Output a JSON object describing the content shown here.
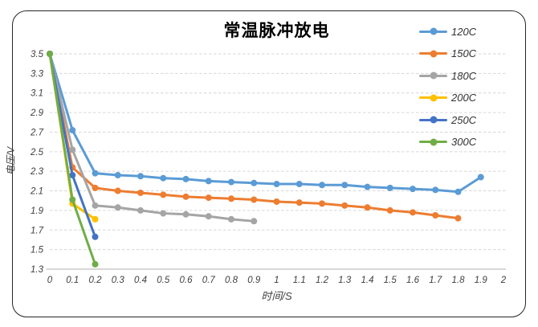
{
  "chart_data": {
    "type": "line",
    "title": "常温脉冲放电",
    "xlabel": "时间/S",
    "ylabel": "电压/V",
    "xlim": [
      0,
      2
    ],
    "ylim": [
      1.3,
      3.5
    ],
    "x_ticks": [
      0,
      0.1,
      0.2,
      0.3,
      0.4,
      0.5,
      0.6,
      0.7,
      0.8,
      0.9,
      1,
      1.1,
      1.2,
      1.3,
      1.4,
      1.5,
      1.6,
      1.7,
      1.8,
      1.9,
      2
    ],
    "y_ticks": [
      1.3,
      1.5,
      1.7,
      1.9,
      2.1,
      2.3,
      2.5,
      2.7,
      2.9,
      3.1,
      3.3,
      3.5
    ],
    "grid": "horizontal-dashed",
    "grid_color": "#D6D6D6",
    "axis_line_color": "#BFBFBF",
    "tick_label_color": "#404040",
    "legend_position": "top-right",
    "series": [
      {
        "name": "120C",
        "color": "#5B9BD5",
        "x": [
          0,
          0.1,
          0.2,
          0.3,
          0.4,
          0.5,
          0.6,
          0.7,
          0.8,
          0.9,
          1.0,
          1.1,
          1.2,
          1.3,
          1.4,
          1.5,
          1.6,
          1.7,
          1.8,
          1.9
        ],
        "y": [
          3.5,
          2.72,
          2.28,
          2.26,
          2.25,
          2.23,
          2.22,
          2.2,
          2.19,
          2.18,
          2.17,
          2.17,
          2.16,
          2.16,
          2.14,
          2.13,
          2.12,
          2.11,
          2.09,
          2.24
        ]
      },
      {
        "name": "150C",
        "color": "#ED7D31",
        "x": [
          0,
          0.1,
          0.2,
          0.3,
          0.4,
          0.5,
          0.6,
          0.7,
          0.8,
          0.9,
          1.0,
          1.1,
          1.2,
          1.3,
          1.4,
          1.5,
          1.6,
          1.7,
          1.8
        ],
        "y": [
          3.5,
          2.34,
          2.13,
          2.1,
          2.08,
          2.06,
          2.04,
          2.03,
          2.02,
          2.01,
          1.99,
          1.98,
          1.97,
          1.95,
          1.93,
          1.9,
          1.88,
          1.85,
          1.82
        ]
      },
      {
        "name": "180C",
        "color": "#A5A5A5",
        "x": [
          0,
          0.1,
          0.2,
          0.3,
          0.4,
          0.5,
          0.6,
          0.7,
          0.8,
          0.9
        ],
        "y": [
          3.5,
          2.52,
          1.95,
          1.93,
          1.9,
          1.87,
          1.86,
          1.84,
          1.81,
          1.79
        ]
      },
      {
        "name": "200C",
        "color": "#FFC000",
        "x": [
          0,
          0.1,
          0.2
        ],
        "y": [
          3.5,
          1.97,
          1.81
        ]
      },
      {
        "name": "250C",
        "color": "#4472C4",
        "x": [
          0,
          0.1,
          0.2
        ],
        "y": [
          3.5,
          2.26,
          1.63
        ]
      },
      {
        "name": "300C",
        "color": "#70AD47",
        "x": [
          0,
          0.1,
          0.2
        ],
        "y": [
          3.5,
          2.01,
          1.35
        ]
      }
    ]
  }
}
